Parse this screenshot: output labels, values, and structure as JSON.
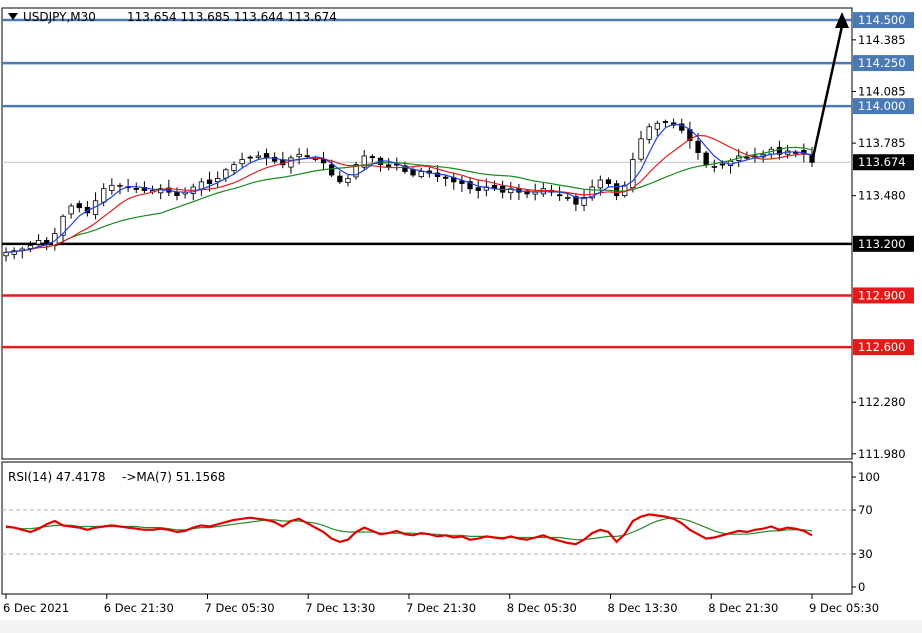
{
  "header": {
    "symbol_label": "USDJPY,M30",
    "ohlc": "113.654 113.685 113.644 113.674"
  },
  "rsi_header": {
    "label": "RSI(14) 47.4178",
    "ma_label": "->MA(7) 51.1568"
  },
  "colors": {
    "background": "#ffffff",
    "blue_level": "#4a7ab5",
    "red_level": "#e41a1a",
    "black_level": "#000000",
    "ma_fast": "#1f3fe0",
    "ma_mid": "#e02020",
    "ma_slow": "#1d8a1d",
    "rsi": "#e00000",
    "rsi_ma": "#2a8a2a"
  },
  "chart_data": [
    {
      "type": "candlestick",
      "title": "USDJPY,M30",
      "ylim": [
        111.95,
        114.57
      ],
      "y_ticks": [
        "114.385",
        "114.085",
        "113.785",
        "113.480",
        "112.280",
        "111.980"
      ],
      "x_ticks": [
        "6 Dec 2021",
        "6 Dec 21:30",
        "7 Dec 05:30",
        "7 Dec 13:30",
        "7 Dec 21:30",
        "8 Dec 05:30",
        "8 Dec 13:30",
        "8 Dec 21:30",
        "9 Dec 05:30"
      ],
      "levels": [
        {
          "label": "114.500",
          "value": 114.5,
          "color": "blue"
        },
        {
          "label": "114.250",
          "value": 114.25,
          "color": "blue"
        },
        {
          "label": "114.000",
          "value": 114.0,
          "color": "blue"
        },
        {
          "label": "113.200",
          "value": 113.2,
          "color": "black"
        },
        {
          "label": "112.900",
          "value": 112.9,
          "color": "red"
        },
        {
          "label": "112.600",
          "value": 112.6,
          "color": "red"
        }
      ],
      "current_price": {
        "label": "113.674",
        "value": 113.674
      },
      "close_series": [
        113.15,
        113.16,
        113.17,
        113.19,
        113.22,
        113.2,
        113.26,
        113.36,
        113.42,
        113.41,
        113.38,
        113.45,
        113.52,
        113.54,
        113.54,
        113.53,
        113.52,
        113.51,
        113.51,
        113.52,
        113.5,
        113.48,
        113.5,
        113.53,
        113.56,
        113.55,
        113.58,
        113.63,
        113.66,
        113.69,
        113.7,
        113.71,
        113.7,
        113.68,
        113.66,
        113.7,
        113.72,
        113.71,
        113.69,
        113.67,
        113.6,
        113.56,
        113.58,
        113.66,
        113.71,
        113.7,
        113.66,
        113.65,
        113.66,
        113.62,
        113.6,
        113.62,
        113.61,
        113.59,
        113.58,
        113.56,
        113.55,
        113.52,
        113.51,
        113.53,
        113.52,
        113.5,
        113.52,
        113.5,
        113.49,
        113.5,
        113.52,
        113.5,
        113.48,
        113.47,
        113.43,
        113.47,
        113.53,
        113.57,
        113.55,
        113.48,
        113.54,
        113.69,
        113.81,
        113.88,
        113.9,
        113.91,
        113.89,
        113.86,
        113.8,
        113.73,
        113.66,
        113.65,
        113.66,
        113.68,
        113.71,
        113.7,
        113.71,
        113.72,
        113.75,
        113.72,
        113.74,
        113.73,
        113.72,
        113.674
      ],
      "ma_periods": [
        "fast",
        "mid",
        "slow"
      ],
      "annotation": {
        "type": "arrow",
        "from": 113.674,
        "to": 114.5
      }
    },
    {
      "type": "line",
      "title": "RSI(14)",
      "ylim": [
        0,
        100
      ],
      "y_ticks": [
        "100",
        "70",
        "30",
        "0"
      ],
      "reference_lines": [
        70,
        30
      ],
      "rsi": [
        55,
        54,
        52,
        50,
        53,
        57,
        60,
        56,
        55,
        54,
        52,
        54,
        55,
        56,
        55,
        54,
        53,
        52,
        52,
        53,
        52,
        50,
        51,
        54,
        56,
        55,
        57,
        59,
        61,
        62,
        63,
        62,
        61,
        59,
        55,
        60,
        62,
        58,
        54,
        50,
        44,
        41,
        43,
        50,
        54,
        51,
        48,
        49,
        51,
        48,
        47,
        49,
        48,
        46,
        47,
        45,
        46,
        43,
        44,
        46,
        45,
        44,
        46,
        44,
        43,
        45,
        47,
        44,
        42,
        40,
        39,
        43,
        49,
        52,
        50,
        41,
        48,
        60,
        64,
        66,
        65,
        64,
        62,
        58,
        52,
        48,
        44,
        45,
        47,
        49,
        51,
        50,
        52,
        53,
        55,
        52,
        54,
        53,
        51,
        47
      ],
      "rsi_ma": [
        54,
        54,
        53,
        53,
        54,
        55,
        56,
        56,
        56,
        55,
        55,
        55,
        55,
        55,
        55,
        55,
        55,
        54,
        54,
        54,
        53,
        52,
        52,
        53,
        54,
        54,
        55,
        56,
        57,
        58,
        59,
        60,
        61,
        61,
        60,
        60,
        60,
        59,
        58,
        56,
        53,
        51,
        50,
        50,
        50,
        50,
        49,
        49,
        49,
        49,
        49,
        48,
        48,
        48,
        47,
        47,
        47,
        46,
        46,
        46,
        45,
        45,
        45,
        45,
        45,
        45,
        45,
        45,
        45,
        44,
        43,
        43,
        44,
        45,
        46,
        46,
        47,
        50,
        53,
        57,
        60,
        62,
        63,
        62,
        60,
        57,
        54,
        51,
        49,
        48,
        48,
        48,
        49,
        50,
        51,
        51,
        52,
        52,
        52,
        51
      ]
    }
  ]
}
